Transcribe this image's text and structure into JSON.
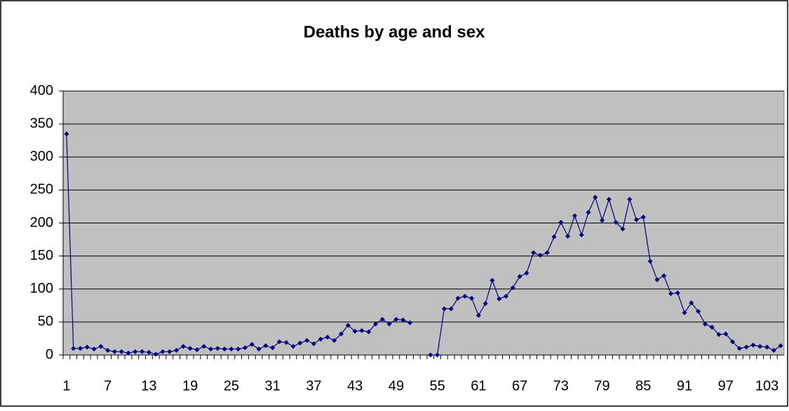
{
  "chart_data": {
    "type": "line",
    "title": "Deaths by age and sex",
    "categories": [
      1,
      null,
      null,
      null,
      null,
      null,
      7,
      null,
      null,
      null,
      null,
      null,
      13,
      null,
      null,
      null,
      null,
      null,
      19,
      null,
      null,
      null,
      null,
      null,
      25,
      null,
      null,
      null,
      null,
      null,
      31,
      null,
      null,
      null,
      null,
      null,
      37,
      null,
      null,
      null,
      null,
      null,
      43,
      null,
      null,
      null,
      null,
      null,
      49,
      null,
      null,
      null,
      null,
      null,
      55,
      null,
      null,
      null,
      null,
      null,
      61,
      null,
      null,
      null,
      null,
      null,
      67,
      null,
      null,
      null,
      null,
      null,
      73,
      null,
      null,
      null,
      null,
      null,
      79,
      null,
      null,
      null,
      null,
      null,
      85,
      null,
      null,
      null,
      null,
      null,
      91,
      null,
      null,
      null,
      null,
      null,
      97,
      null,
      null,
      null,
      null,
      null,
      103,
      null,
      null
    ],
    "series": [
      {
        "color": "#000080",
        "values": [
          335,
          10,
          10,
          12,
          9,
          13,
          7,
          5,
          5,
          3,
          5,
          5,
          4,
          1,
          5,
          5,
          7,
          13,
          10,
          8,
          13,
          9,
          10,
          9,
          9,
          9,
          11,
          16,
          9,
          14,
          11,
          20,
          19,
          13,
          18,
          22,
          17,
          24,
          27,
          22,
          32,
          45,
          36,
          37,
          35,
          47,
          54,
          47,
          54,
          53,
          49,
          null,
          null,
          0,
          0,
          70,
          70,
          86,
          89,
          86,
          60,
          78,
          113,
          85,
          89,
          102,
          119,
          124,
          155,
          151,
          155,
          179,
          201,
          180,
          211,
          182,
          216,
          239,
          204,
          236,
          201,
          191,
          236,
          205,
          209,
          142,
          114,
          120,
          93,
          94,
          64,
          79,
          66,
          47,
          42,
          31,
          32,
          20,
          10,
          12,
          15,
          13,
          12,
          7,
          14
        ]
      }
    ],
    "ylim": [
      0,
      400
    ],
    "yticks": [
      0,
      50,
      100,
      150,
      200,
      250,
      300,
      350,
      400
    ],
    "grid": true
  }
}
